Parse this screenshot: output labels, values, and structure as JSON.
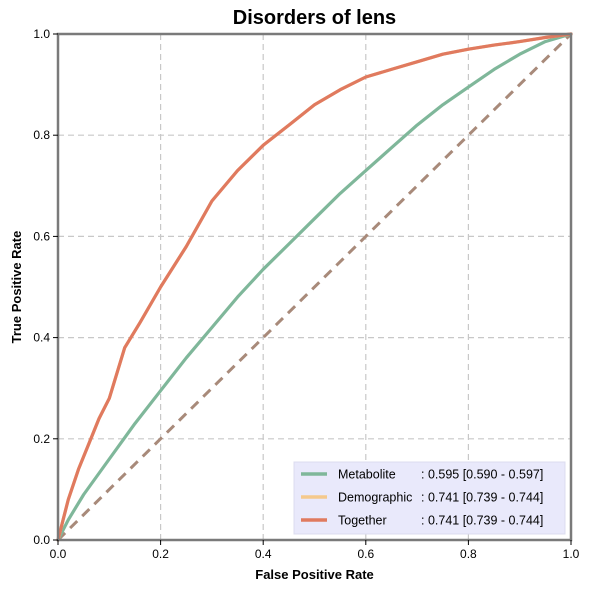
{
  "chart_data": {
    "type": "line",
    "title": "Disorders of lens",
    "xlabel": "False Positive Rate",
    "ylabel": "True Positive Rate",
    "xlim": [
      0,
      1
    ],
    "ylim": [
      0,
      1
    ],
    "xticks": [
      "0.0",
      "0.2",
      "0.4",
      "0.6",
      "0.8",
      "1.0"
    ],
    "yticks": [
      "0.0",
      "0.2",
      "0.4",
      "0.6",
      "0.8",
      "1.0"
    ],
    "grid": true,
    "legend_position": "bottom-right",
    "series": [
      {
        "name": "Metabolite",
        "auc_text": ": 0.595 [0.590 - 0.597]",
        "color": "#7fb79a",
        "x": [
          0,
          0.02,
          0.05,
          0.1,
          0.15,
          0.2,
          0.25,
          0.3,
          0.35,
          0.4,
          0.45,
          0.5,
          0.55,
          0.6,
          0.65,
          0.7,
          0.75,
          0.8,
          0.85,
          0.9,
          0.95,
          1.0
        ],
        "y": [
          0,
          0.04,
          0.09,
          0.16,
          0.23,
          0.295,
          0.36,
          0.42,
          0.48,
          0.535,
          0.585,
          0.635,
          0.685,
          0.73,
          0.775,
          0.82,
          0.86,
          0.895,
          0.93,
          0.96,
          0.985,
          1.0
        ]
      },
      {
        "name": "Demographic",
        "auc_text": ": 0.741 [0.739 - 0.744]",
        "color": "#f5c98c",
        "x": [
          0,
          0.01,
          0.02,
          0.04,
          0.06,
          0.08,
          0.1,
          0.13,
          0.16,
          0.2,
          0.25,
          0.3,
          0.35,
          0.4,
          0.45,
          0.5,
          0.55,
          0.6,
          0.65,
          0.7,
          0.75,
          0.8,
          0.85,
          0.9,
          0.95,
          1.0
        ],
        "y": [
          0,
          0.04,
          0.08,
          0.14,
          0.19,
          0.24,
          0.28,
          0.38,
          0.43,
          0.5,
          0.58,
          0.67,
          0.73,
          0.78,
          0.82,
          0.86,
          0.89,
          0.915,
          0.93,
          0.945,
          0.96,
          0.97,
          0.978,
          0.985,
          0.993,
          1.0
        ]
      },
      {
        "name": "Together",
        "auc_text": ": 0.741 [0.739 - 0.744]",
        "color": "#e07a5f",
        "x": [
          0,
          0.01,
          0.02,
          0.04,
          0.06,
          0.08,
          0.1,
          0.13,
          0.16,
          0.2,
          0.25,
          0.3,
          0.35,
          0.4,
          0.45,
          0.5,
          0.55,
          0.6,
          0.65,
          0.7,
          0.75,
          0.8,
          0.85,
          0.9,
          0.95,
          1.0
        ],
        "y": [
          0,
          0.04,
          0.08,
          0.14,
          0.19,
          0.24,
          0.28,
          0.38,
          0.43,
          0.5,
          0.58,
          0.67,
          0.73,
          0.78,
          0.82,
          0.86,
          0.89,
          0.915,
          0.93,
          0.945,
          0.96,
          0.97,
          0.978,
          0.985,
          0.993,
          1.0
        ]
      }
    ],
    "reference_line": {
      "x": [
        0,
        1
      ],
      "y": [
        0,
        1
      ],
      "color": "#a88a7a",
      "style": "dashed"
    }
  }
}
